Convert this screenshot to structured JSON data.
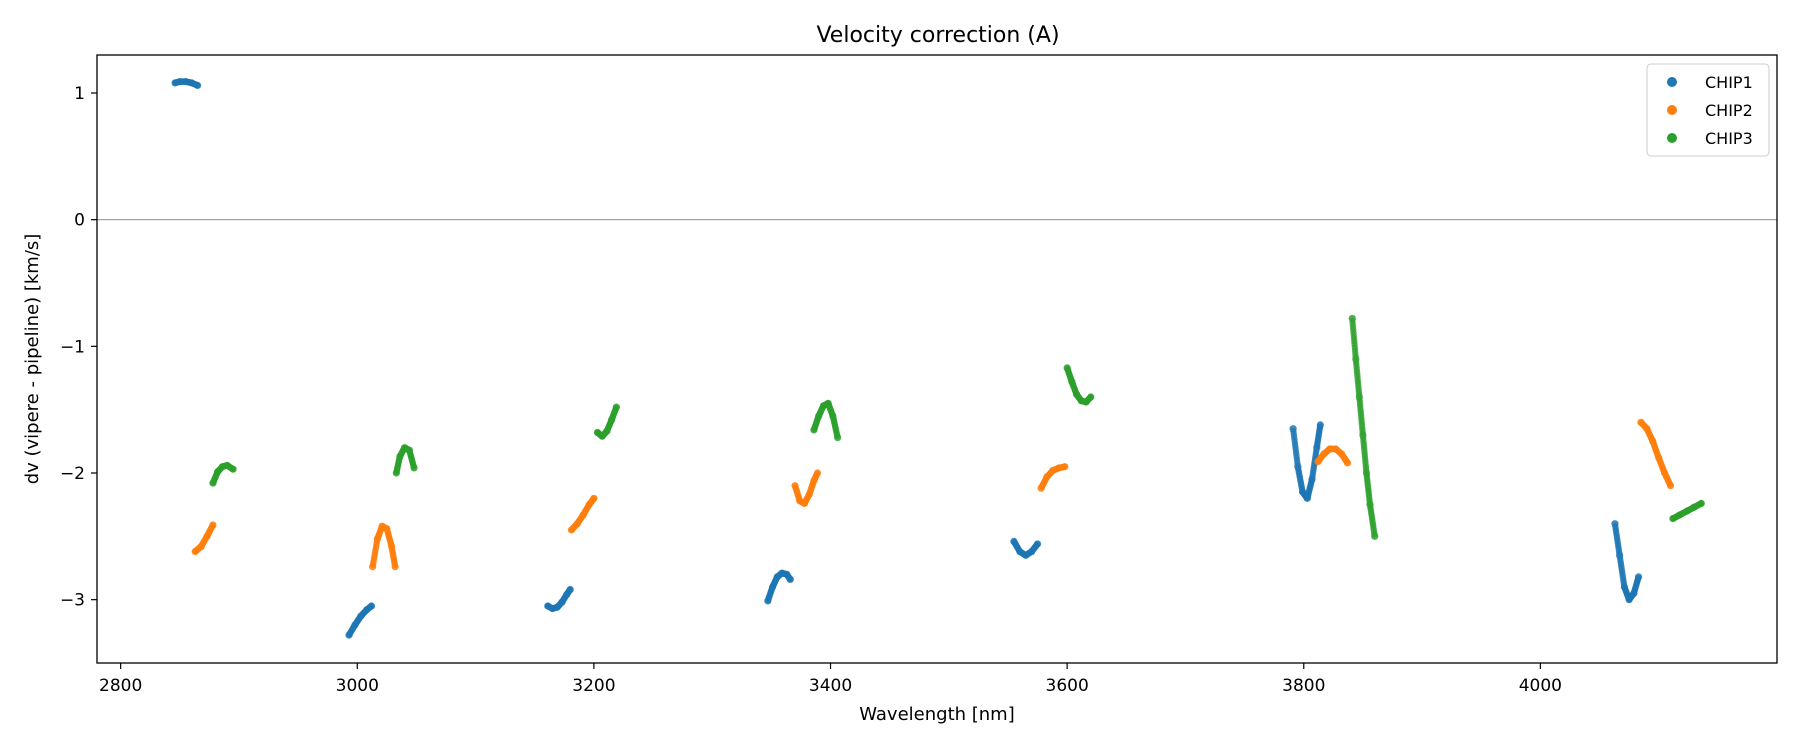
{
  "chart_data": {
    "type": "scatter",
    "title": "Velocity correction (A)",
    "xlabel": "Wavelength [nm]",
    "ylabel": "dv (vipere - pipeline) [km/s]",
    "xlim": [
      2780,
      4200
    ],
    "ylim": [
      -3.5,
      1.3
    ],
    "xticks": [
      2800,
      3000,
      3200,
      3400,
      3600,
      3800,
      4000
    ],
    "xtick_labels": [
      "2800",
      "3000",
      "3200",
      "3400",
      "3600",
      "3800",
      "4000"
    ],
    "yticks": [
      1,
      0,
      -1,
      -2,
      -3
    ],
    "ytick_labels": [
      "1",
      "0",
      "−1",
      "−2",
      "−3"
    ],
    "hline": 0,
    "legend_position": "top-right",
    "series": [
      {
        "name": "CHIP1",
        "color": "#1f77b4",
        "segments": [
          {
            "x": [
              2846,
              2850,
              2855,
              2860,
              2865
            ],
            "y": [
              1.08,
              1.09,
              1.09,
              1.08,
              1.06
            ]
          },
          {
            "x": [
              2993,
              2998,
              3003,
              3008,
              3012
            ],
            "y": [
              -3.28,
              -3.2,
              -3.13,
              -3.08,
              -3.05
            ]
          },
          {
            "x": [
              3161,
              3165,
              3169,
              3173,
              3177,
              3180
            ],
            "y": [
              -3.05,
              -3.07,
              -3.06,
              -3.02,
              -2.96,
              -2.92
            ]
          },
          {
            "x": [
              3347,
              3351,
              3355,
              3359,
              3363,
              3366
            ],
            "y": [
              -3.01,
              -2.9,
              -2.82,
              -2.79,
              -2.8,
              -2.84
            ]
          },
          {
            "x": [
              3555,
              3560,
              3565,
              3570,
              3575
            ],
            "y": [
              -2.54,
              -2.62,
              -2.65,
              -2.62,
              -2.56
            ]
          },
          {
            "x": [
              3791,
              3795,
              3799,
              3803,
              3807,
              3811,
              3814
            ],
            "y": [
              -1.65,
              -1.95,
              -2.15,
              -2.2,
              -2.05,
              -1.8,
              -1.62
            ]
          },
          {
            "x": [
              4063,
              4067,
              4071,
              4075,
              4079,
              4083
            ],
            "y": [
              -2.4,
              -2.65,
              -2.9,
              -3.0,
              -2.95,
              -2.82
            ]
          }
        ]
      },
      {
        "name": "CHIP2",
        "color": "#ff7f0e",
        "segments": [
          {
            "x": [
              2863,
              2868,
              2873,
              2878
            ],
            "y": [
              -2.62,
              -2.58,
              -2.5,
              -2.41
            ]
          },
          {
            "x": [
              3013,
              3017,
              3021,
              3025,
              3029,
              3032
            ],
            "y": [
              -2.74,
              -2.52,
              -2.42,
              -2.44,
              -2.58,
              -2.74
            ]
          },
          {
            "x": [
              3181,
              3186,
              3191,
              3196,
              3200
            ],
            "y": [
              -2.45,
              -2.4,
              -2.33,
              -2.25,
              -2.2
            ]
          },
          {
            "x": [
              3370,
              3374,
              3378,
              3382,
              3386,
              3389
            ],
            "y": [
              -2.1,
              -2.22,
              -2.24,
              -2.17,
              -2.06,
              -2.0
            ]
          },
          {
            "x": [
              3578,
              3583,
              3588,
              3593,
              3598
            ],
            "y": [
              -2.12,
              -2.03,
              -1.98,
              -1.96,
              -1.95
            ]
          },
          {
            "x": [
              3812,
              3817,
              3822,
              3827,
              3832,
              3837
            ],
            "y": [
              -1.91,
              -1.85,
              -1.81,
              -1.81,
              -1.85,
              -1.92
            ]
          },
          {
            "x": [
              4085,
              4090,
              4095,
              4100,
              4105,
              4110
            ],
            "y": [
              -1.6,
              -1.65,
              -1.75,
              -1.88,
              -2.0,
              -2.1
            ]
          }
        ]
      },
      {
        "name": "CHIP3",
        "color": "#2ca02c",
        "segments": [
          {
            "x": [
              2878,
              2882,
              2886,
              2890,
              2895
            ],
            "y": [
              -2.08,
              -1.99,
              -1.95,
              -1.94,
              -1.97
            ]
          },
          {
            "x": [
              3033,
              3036,
              3040,
              3044,
              3048
            ],
            "y": [
              -2.0,
              -1.87,
              -1.8,
              -1.82,
              -1.96
            ]
          },
          {
            "x": [
              3203,
              3207,
              3211,
              3215,
              3219
            ],
            "y": [
              -1.68,
              -1.71,
              -1.67,
              -1.58,
              -1.48
            ]
          },
          {
            "x": [
              3386,
              3390,
              3394,
              3398,
              3402,
              3406
            ],
            "y": [
              -1.66,
              -1.55,
              -1.47,
              -1.45,
              -1.55,
              -1.72
            ]
          },
          {
            "x": [
              3600,
              3604,
              3608,
              3612,
              3616,
              3620
            ],
            "y": [
              -1.17,
              -1.28,
              -1.38,
              -1.43,
              -1.44,
              -1.4
            ]
          },
          {
            "x": [
              3841,
              3844,
              3847,
              3850,
              3853,
              3856,
              3860
            ],
            "y": [
              -0.78,
              -1.1,
              -1.4,
              -1.7,
              -2.0,
              -2.25,
              -2.5
            ]
          },
          {
            "x": [
              4112,
              4118,
              4124,
              4130,
              4136
            ],
            "y": [
              -2.36,
              -2.33,
              -2.3,
              -2.27,
              -2.24
            ]
          }
        ]
      }
    ]
  }
}
